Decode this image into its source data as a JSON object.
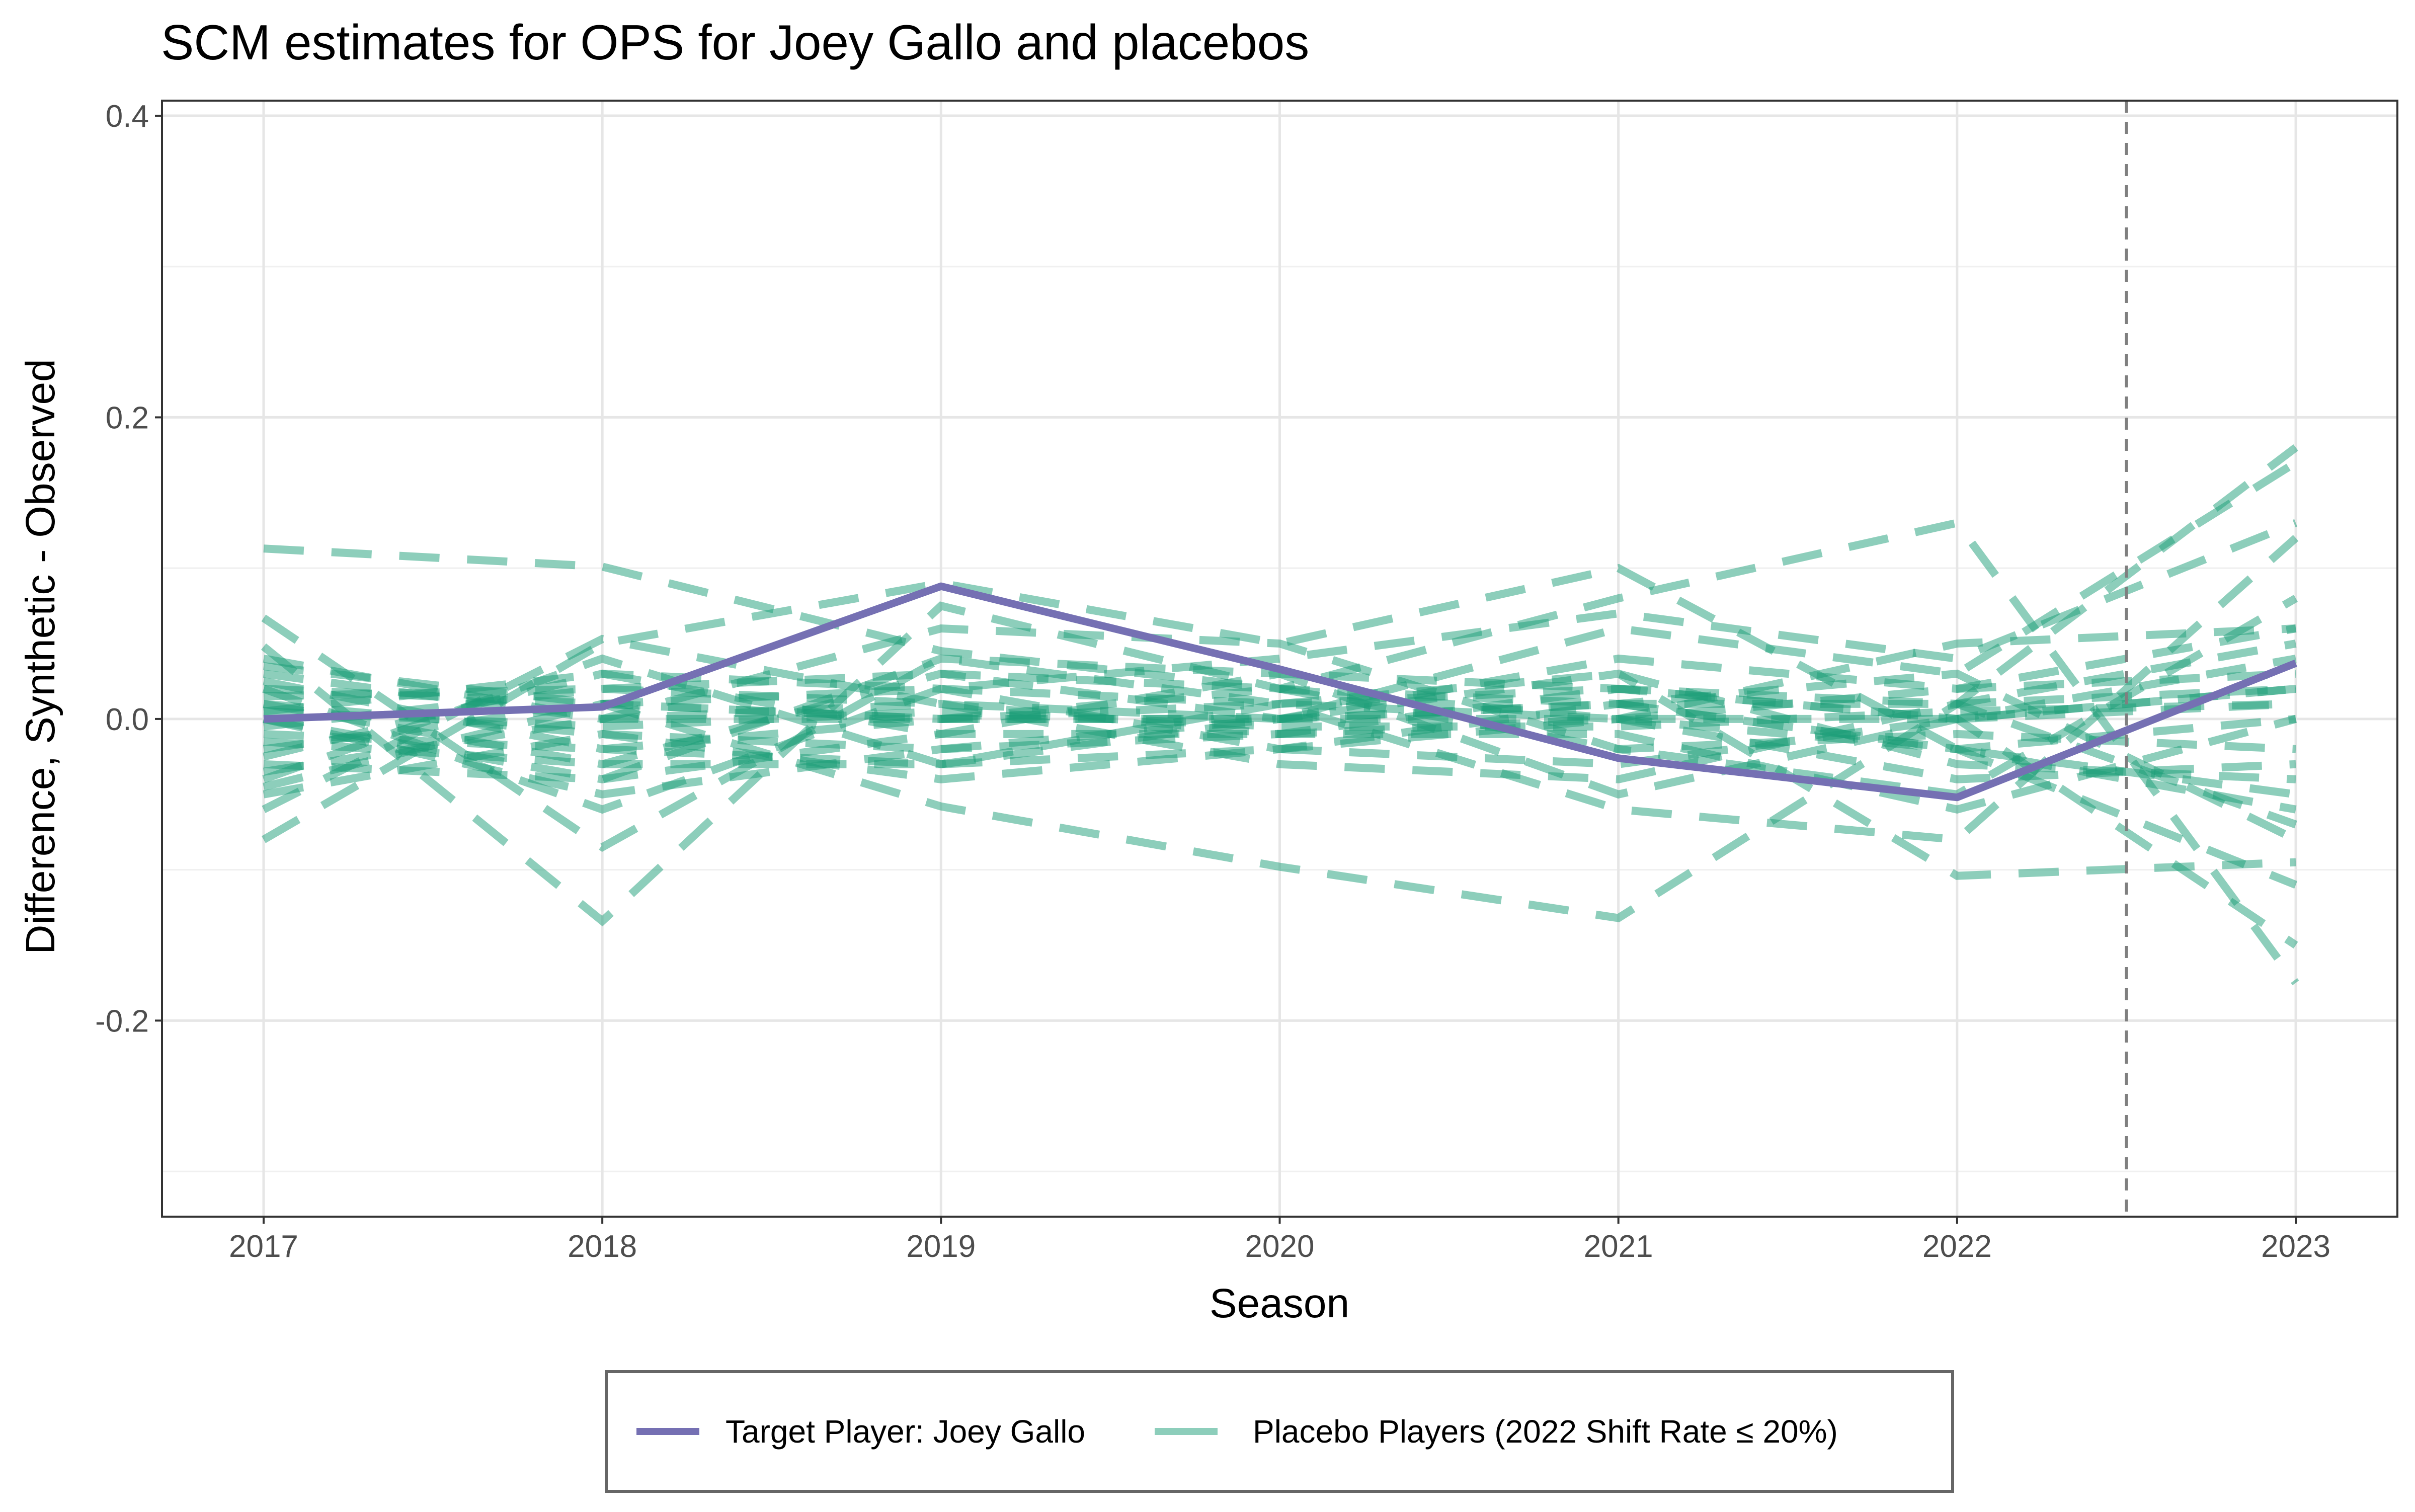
{
  "chart_data": {
    "type": "line",
    "title": "SCM estimates for OPS for Joey Gallo and placebos",
    "xlabel": "Season",
    "ylabel": "Difference, Synthetic - Observed",
    "x": [
      2017,
      2018,
      2019,
      2020,
      2021,
      2022,
      2023
    ],
    "x_ticks": [
      "2017",
      "2018",
      "2019",
      "2020",
      "2021",
      "2022",
      "2023"
    ],
    "y_ticks": [
      "-0.2",
      "0.0",
      "0.2",
      "0.4"
    ],
    "y_tick_values": [
      -0.2,
      0.0,
      0.2,
      0.4
    ],
    "xlim": [
      2016.7,
      2023.3
    ],
    "ylim": [
      -0.33,
      0.41
    ],
    "grid": true,
    "legend_position": "bottom",
    "treatment_line_x": 2022.5,
    "target": {
      "name": "Target Player: Joey Gallo",
      "color": "#7570b3",
      "values": [
        0.0,
        0.008,
        0.088,
        0.033,
        -0.026,
        -0.052,
        0.037
      ]
    },
    "placebo_legend": "Placebo Players (2022 Shift Rate ≤ 20%)",
    "placebo_color": "#1b9e77",
    "placebos": [
      [
        0.113,
        0.101,
        0.045,
        0.02,
        0.01,
        -0.02,
        -0.06
      ],
      [
        0.067,
        -0.085,
        0.04,
        0.01,
        0.0,
        0.0,
        0.02
      ],
      [
        -0.08,
        0.05,
        0.09,
        0.05,
        0.1,
        -0.02,
        -0.05
      ],
      [
        0.048,
        -0.134,
        0.075,
        0.02,
        0.08,
        0.13,
        -0.175
      ],
      [
        0.035,
        0.01,
        -0.058,
        -0.098,
        -0.132,
        0.01,
        0.18
      ],
      [
        -0.06,
        0.053,
        0.01,
        0.0,
        0.06,
        0.03,
        0.17
      ],
      [
        0.02,
        -0.06,
        0.02,
        0.04,
        0.07,
        0.04,
        0.13
      ],
      [
        0.01,
        -0.03,
        0.03,
        0.0,
        0.03,
        -0.104,
        -0.095
      ],
      [
        -0.04,
        0.04,
        -0.03,
        0.01,
        -0.06,
        -0.08,
        0.12
      ],
      [
        0.0,
        -0.05,
        -0.02,
        -0.01,
        0.02,
        0.0,
        -0.15
      ],
      [
        -0.02,
        0.01,
        0.0,
        0.0,
        0.01,
        -0.02,
        -0.11
      ],
      [
        0.03,
        0.0,
        0.06,
        0.05,
        -0.02,
        -0.05,
        0.08
      ],
      [
        -0.05,
        -0.01,
        -0.04,
        -0.02,
        0.0,
        0.05,
        0.06
      ],
      [
        0.015,
        0.02,
        0.01,
        -0.03,
        -0.04,
        0.01,
        -0.07
      ],
      [
        -0.03,
        -0.04,
        0.04,
        0.03,
        0.02,
        0.0,
        0.04
      ],
      [
        0.005,
        0.03,
        -0.01,
        -0.01,
        -0.01,
        -0.06,
        0.0
      ],
      [
        -0.01,
        -0.02,
        0.0,
        0.02,
        0.0,
        0.02,
        0.03
      ],
      [
        0.02,
        0.01,
        0.02,
        0.01,
        0.03,
        -0.03,
        -0.04
      ],
      [
        -0.015,
        -0.03,
        -0.03,
        -0.02,
        -0.03,
        0.0,
        0.01
      ],
      [
        0.04,
        0.0,
        0.0,
        0.0,
        0.01,
        0.01,
        0.02
      ],
      [
        -0.005,
        0.02,
        0.03,
        0.02,
        -0.02,
        -0.01,
        -0.02
      ],
      [
        0.01,
        -0.01,
        -0.02,
        0.0,
        0.04,
        0.02,
        0.06
      ],
      [
        -0.035,
        0.0,
        0.01,
        -0.01,
        0.0,
        -0.04,
        -0.03
      ],
      [
        0.0,
        -0.04,
        -0.01,
        0.03,
        -0.05,
        0.0,
        0.02
      ],
      [
        -0.025,
        0.03,
        0.02,
        -0.02,
        0.01,
        0.03,
        -0.08
      ],
      [
        0.025,
        -0.02,
        -0.03,
        0.0,
        0.0,
        -0.02,
        0.0
      ],
      [
        -0.045,
        0.01,
        0.0,
        0.01,
        0.02,
        0.01,
        0.05
      ],
      [
        0.005,
        -0.005,
        0.005,
        -0.005,
        -0.005,
        0.005,
        0.01
      ]
    ]
  }
}
